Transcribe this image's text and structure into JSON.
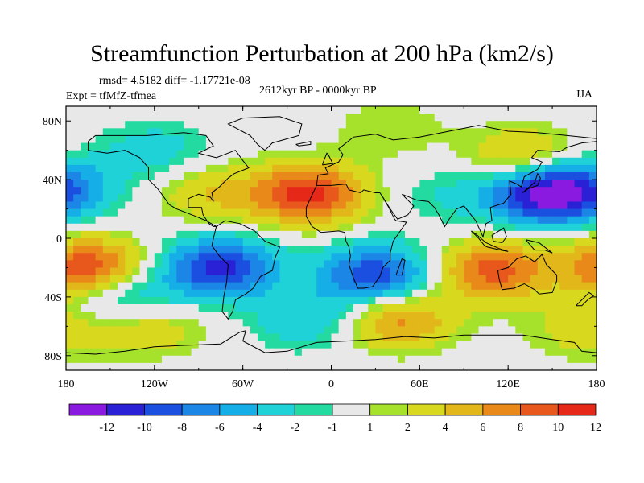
{
  "chart_data": {
    "type": "heatmap",
    "title": "Streamfunction Perturbation at 200 hPa (km2/s)",
    "stats": "rmsd= 4.5182 diff= -1.17721e-08",
    "experiment": "Expt = tfMfZ-tfmea",
    "period": "2612kyr BP - 0000kyr BP",
    "season": "JJA",
    "xlim": [
      -180,
      180
    ],
    "ylim": [
      -90,
      90
    ],
    "x_ticks": [
      {
        "value": -180,
        "label": "180"
      },
      {
        "value": -120,
        "label": "120W"
      },
      {
        "value": -60,
        "label": "60W"
      },
      {
        "value": 0,
        "label": "0"
      },
      {
        "value": 60,
        "label": "60E"
      },
      {
        "value": 120,
        "label": "120E"
      },
      {
        "value": 180,
        "label": "180"
      }
    ],
    "y_ticks": [
      {
        "value": 80,
        "label": "80N"
      },
      {
        "value": 40,
        "label": "40N"
      },
      {
        "value": 0,
        "label": "0"
      },
      {
        "value": -40,
        "label": "40S"
      },
      {
        "value": -80,
        "label": "80S"
      }
    ],
    "colorbar": {
      "colors": [
        "#8a1adf",
        "#2a20d6",
        "#1a4fe0",
        "#1c86e6",
        "#16aee6",
        "#1ed2d8",
        "#23dba0",
        "#e8e8e8",
        "#a6e22c",
        "#d8d91e",
        "#e2b71a",
        "#e8891a",
        "#e8581c",
        "#e62818"
      ],
      "labels": [
        "-12",
        "-10",
        "-8",
        "-6",
        "-4",
        "-2",
        "-1",
        "1",
        "2",
        "4",
        "6",
        "8",
        "10",
        "12"
      ]
    },
    "centers": [
      {
        "lon": 145,
        "lat": 30,
        "value": -13
      },
      {
        "lon": -75,
        "lat": -20,
        "value": -11
      },
      {
        "lon": 30,
        "lat": -25,
        "value": -10
      },
      {
        "lon": -140,
        "lat": -40,
        "value": -5
      },
      {
        "lon": -15,
        "lat": -55,
        "value": -4
      },
      {
        "lon": -180,
        "lat": 35,
        "value": -5
      },
      {
        "lon": 80,
        "lat": 30,
        "value": -2
      },
      {
        "lon": -120,
        "lat": 60,
        "value": -3
      },
      {
        "lon": -15,
        "lat": 30,
        "value": 11
      },
      {
        "lon": 110,
        "lat": -22,
        "value": 9
      },
      {
        "lon": -165,
        "lat": -20,
        "value": 10
      },
      {
        "lon": 45,
        "lat": -55,
        "value": 7
      },
      {
        "lon": 130,
        "lat": 55,
        "value": 5
      },
      {
        "lon": -80,
        "lat": 30,
        "value": 4
      },
      {
        "lon": -125,
        "lat": -60,
        "value": 4
      },
      {
        "lon": 170,
        "lat": -62,
        "value": 3
      },
      {
        "lon": 40,
        "lat": 75,
        "value": 2
      }
    ]
  }
}
